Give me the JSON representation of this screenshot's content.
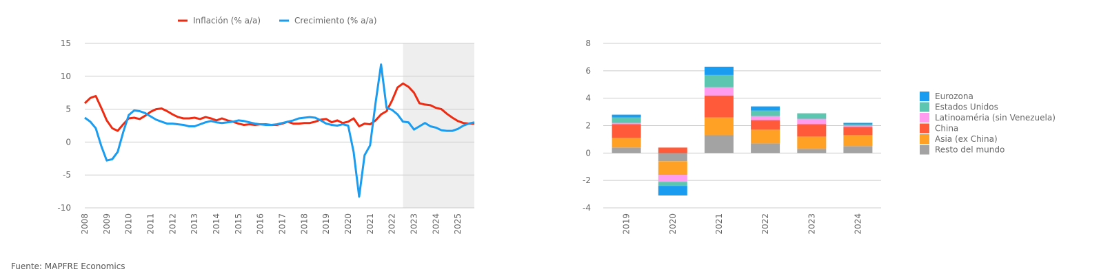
{
  "source": "Fuente: MAPFRE Economics",
  "colors": {
    "inflation": "#ee2a10",
    "growth": "#1a9cf0",
    "forecast_band": "#eeeeee",
    "grid": "#cccccc"
  },
  "chart_data": [
    {
      "type": "line",
      "legend_position": "top",
      "grid": true,
      "ylim": [
        -10,
        15
      ],
      "yticks": [
        "15",
        "10",
        "5",
        "0",
        "-5",
        "-10"
      ],
      "xticks": [
        "2008",
        "2009",
        "2010",
        "2011",
        "2012",
        "2013",
        "2014",
        "2015",
        "2016",
        "2017",
        "2018",
        "2019",
        "2020",
        "2021",
        "2022",
        "2023",
        "2024",
        "2025"
      ],
      "forecast_start": 2022.5,
      "x_end": 2025.75,
      "series": [
        {
          "name": "Inflación (% a/a)",
          "color": "#ee2a10",
          "points": [
            [
              2008.0,
              5.9
            ],
            [
              2008.25,
              6.7
            ],
            [
              2008.5,
              7.0
            ],
            [
              2008.75,
              5.2
            ],
            [
              2009.0,
              3.3
            ],
            [
              2009.25,
              2.1
            ],
            [
              2009.5,
              1.7
            ],
            [
              2009.75,
              2.7
            ],
            [
              2010.0,
              3.6
            ],
            [
              2010.25,
              3.7
            ],
            [
              2010.5,
              3.5
            ],
            [
              2010.75,
              4.0
            ],
            [
              2011.0,
              4.6
            ],
            [
              2011.25,
              5.0
            ],
            [
              2011.5,
              5.1
            ],
            [
              2011.75,
              4.7
            ],
            [
              2012.0,
              4.2
            ],
            [
              2012.25,
              3.8
            ],
            [
              2012.5,
              3.6
            ],
            [
              2012.75,
              3.6
            ],
            [
              2013.0,
              3.7
            ],
            [
              2013.25,
              3.5
            ],
            [
              2013.5,
              3.8
            ],
            [
              2013.75,
              3.6
            ],
            [
              2014.0,
              3.3
            ],
            [
              2014.25,
              3.6
            ],
            [
              2014.5,
              3.3
            ],
            [
              2014.75,
              3.1
            ],
            [
              2015.0,
              2.8
            ],
            [
              2015.25,
              2.6
            ],
            [
              2015.5,
              2.7
            ],
            [
              2015.75,
              2.6
            ],
            [
              2016.0,
              2.7
            ],
            [
              2016.25,
              2.7
            ],
            [
              2016.5,
              2.6
            ],
            [
              2016.75,
              2.6
            ],
            [
              2017.0,
              2.8
            ],
            [
              2017.25,
              3.1
            ],
            [
              2017.5,
              2.8
            ],
            [
              2017.75,
              2.8
            ],
            [
              2018.0,
              2.9
            ],
            [
              2018.25,
              2.9
            ],
            [
              2018.5,
              3.1
            ],
            [
              2018.75,
              3.4
            ],
            [
              2019.0,
              3.5
            ],
            [
              2019.25,
              3.0
            ],
            [
              2019.5,
              3.3
            ],
            [
              2019.75,
              2.9
            ],
            [
              2020.0,
              3.1
            ],
            [
              2020.25,
              3.6
            ],
            [
              2020.5,
              2.4
            ],
            [
              2020.75,
              2.8
            ],
            [
              2021.0,
              2.7
            ],
            [
              2021.25,
              3.3
            ],
            [
              2021.5,
              4.2
            ],
            [
              2021.75,
              4.7
            ],
            [
              2022.0,
              6.3
            ],
            [
              2022.25,
              8.3
            ],
            [
              2022.5,
              8.9
            ],
            [
              2022.75,
              8.4
            ],
            [
              2023.0,
              7.5
            ],
            [
              2023.25,
              5.9
            ],
            [
              2023.5,
              5.7
            ],
            [
              2023.75,
              5.6
            ],
            [
              2024.0,
              5.2
            ],
            [
              2024.25,
              5.0
            ],
            [
              2024.5,
              4.3
            ],
            [
              2024.75,
              3.7
            ],
            [
              2025.0,
              3.2
            ],
            [
              2025.25,
              2.9
            ],
            [
              2025.5,
              2.8
            ],
            [
              2025.75,
              2.8
            ]
          ]
        },
        {
          "name": "Crecimiento (% a/a)",
          "color": "#1a9cf0",
          "points": [
            [
              2008.0,
              3.7
            ],
            [
              2008.25,
              3.1
            ],
            [
              2008.5,
              2.1
            ],
            [
              2008.75,
              -0.6
            ],
            [
              2009.0,
              -2.8
            ],
            [
              2009.25,
              -2.6
            ],
            [
              2009.5,
              -1.5
            ],
            [
              2009.75,
              1.5
            ],
            [
              2010.0,
              4.1
            ],
            [
              2010.25,
              4.8
            ],
            [
              2010.5,
              4.7
            ],
            [
              2010.75,
              4.4
            ],
            [
              2011.0,
              3.9
            ],
            [
              2011.25,
              3.4
            ],
            [
              2011.5,
              3.1
            ],
            [
              2011.75,
              2.8
            ],
            [
              2012.0,
              2.8
            ],
            [
              2012.25,
              2.7
            ],
            [
              2012.5,
              2.6
            ],
            [
              2012.75,
              2.4
            ],
            [
              2013.0,
              2.4
            ],
            [
              2013.25,
              2.7
            ],
            [
              2013.5,
              3.0
            ],
            [
              2013.75,
              3.2
            ],
            [
              2014.0,
              3.0
            ],
            [
              2014.25,
              2.9
            ],
            [
              2014.5,
              3.0
            ],
            [
              2014.75,
              3.1
            ],
            [
              2015.0,
              3.3
            ],
            [
              2015.25,
              3.2
            ],
            [
              2015.5,
              3.0
            ],
            [
              2015.75,
              2.8
            ],
            [
              2016.0,
              2.7
            ],
            [
              2016.25,
              2.6
            ],
            [
              2016.5,
              2.6
            ],
            [
              2016.75,
              2.7
            ],
            [
              2017.0,
              2.9
            ],
            [
              2017.25,
              3.1
            ],
            [
              2017.5,
              3.3
            ],
            [
              2017.75,
              3.6
            ],
            [
              2018.0,
              3.7
            ],
            [
              2018.25,
              3.8
            ],
            [
              2018.5,
              3.7
            ],
            [
              2018.75,
              3.3
            ],
            [
              2019.0,
              2.8
            ],
            [
              2019.25,
              2.6
            ],
            [
              2019.5,
              2.5
            ],
            [
              2019.75,
              2.7
            ],
            [
              2020.0,
              2.5
            ],
            [
              2020.25,
              -1.5
            ],
            [
              2020.5,
              -8.3
            ],
            [
              2020.75,
              -2.0
            ],
            [
              2021.0,
              -0.5
            ],
            [
              2021.25,
              6.0
            ],
            [
              2021.5,
              11.8
            ],
            [
              2021.75,
              5.2
            ],
            [
              2022.0,
              4.9
            ],
            [
              2022.25,
              4.2
            ],
            [
              2022.5,
              3.1
            ],
            [
              2022.75,
              3.0
            ],
            [
              2023.0,
              1.9
            ],
            [
              2023.25,
              2.4
            ],
            [
              2023.5,
              2.9
            ],
            [
              2023.75,
              2.4
            ],
            [
              2024.0,
              2.2
            ],
            [
              2024.25,
              1.8
            ],
            [
              2024.5,
              1.7
            ],
            [
              2024.75,
              1.7
            ],
            [
              2025.0,
              2.0
            ],
            [
              2025.25,
              2.5
            ],
            [
              2025.5,
              2.8
            ],
            [
              2025.75,
              3.0
            ]
          ]
        }
      ]
    },
    {
      "type": "bar",
      "stacked": true,
      "legend_position": "right",
      "grid": true,
      "ylim": [
        -4,
        8
      ],
      "yticks": [
        "8",
        "6",
        "4",
        "2",
        "0",
        "-2",
        "-4"
      ],
      "categories": [
        "2019",
        "2020",
        "2021",
        "2022",
        "2023",
        "2024"
      ],
      "series": [
        {
          "name": "Resto del mundo",
          "color": "#a3a3a3",
          "values": [
            0.4,
            -0.6,
            1.3,
            0.7,
            0.3,
            0.5
          ]
        },
        {
          "name": "Asia (ex China)",
          "color": "#ffa125",
          "values": [
            0.7,
            -1.0,
            1.3,
            1.0,
            0.9,
            0.8
          ]
        },
        {
          "name": "China",
          "color": "#ff5a3a",
          "values": [
            1.0,
            0.4,
            1.6,
            0.7,
            0.9,
            0.6
          ]
        },
        {
          "name": "Latinoaméria (sin Venezuela)",
          "color": "#ff9cef",
          "values": [
            0.1,
            -0.5,
            0.6,
            0.3,
            0.4,
            0.1
          ]
        },
        {
          "name": "Estados Unidos",
          "color": "#5cc6b0",
          "values": [
            0.4,
            -0.3,
            0.9,
            0.4,
            0.4,
            0.1
          ]
        },
        {
          "name": "Eurozona",
          "color": "#1a9cf0",
          "values": [
            0.2,
            -0.7,
            0.6,
            0.3,
            0.0,
            0.1
          ]
        }
      ],
      "legend_order": [
        "Eurozona",
        "Estados Unidos",
        "Latinoaméria (sin Venezuela)",
        "China",
        "Asia (ex China)",
        "Resto del mundo"
      ]
    }
  ]
}
